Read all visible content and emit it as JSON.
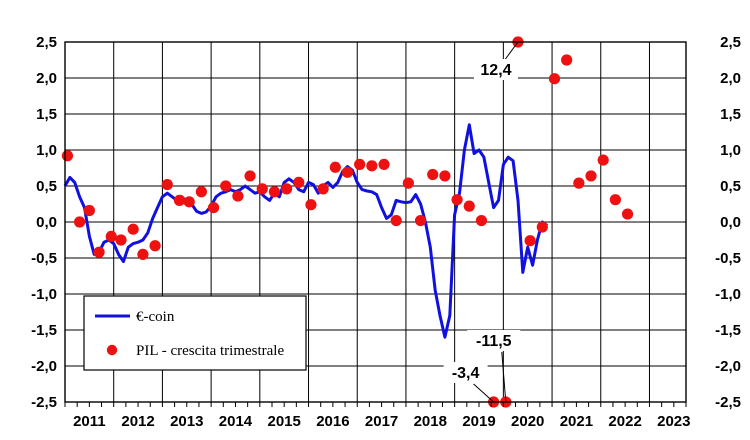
{
  "chart_data": {
    "type": "line",
    "title": "",
    "xlabel": "",
    "ylabel": "",
    "ylim": [
      -2.5,
      2.5
    ],
    "xlim": [
      2010.5,
      2023.25
    ],
    "y_ticks": [
      "2,5",
      "2,0",
      "1,5",
      "1,0",
      "0,5",
      "0,0",
      "-0,5",
      "-1,0",
      "-1,5",
      "-2,0",
      "-2,5"
    ],
    "y_tick_values": [
      2.5,
      2.0,
      1.5,
      1.0,
      0.5,
      0.0,
      -0.5,
      -1.0,
      -1.5,
      -2.0,
      -2.5
    ],
    "x_tick_labels": [
      "2011",
      "2012",
      "2013",
      "2014",
      "2015",
      "2016",
      "2017",
      "2018",
      "2019",
      "2020",
      "2021",
      "2022",
      "2023"
    ],
    "grid": true,
    "legend_position": "bottom-left",
    "colors": {
      "line": "#1010e0",
      "dots": "#ee1111",
      "grid": "#000000"
    },
    "series": [
      {
        "name": "€-coin",
        "kind": "line",
        "points": [
          [
            2010.5,
            0.5
          ],
          [
            2010.6,
            0.62
          ],
          [
            2010.7,
            0.55
          ],
          [
            2010.8,
            0.35
          ],
          [
            2010.9,
            0.2
          ],
          [
            2011.0,
            -0.2
          ],
          [
            2011.1,
            -0.45
          ],
          [
            2011.2,
            -0.42
          ],
          [
            2011.3,
            -0.28
          ],
          [
            2011.4,
            -0.25
          ],
          [
            2011.5,
            -0.3
          ],
          [
            2011.6,
            -0.45
          ],
          [
            2011.7,
            -0.55
          ],
          [
            2011.8,
            -0.35
          ],
          [
            2011.9,
            -0.3
          ],
          [
            2012.0,
            -0.28
          ],
          [
            2012.1,
            -0.25
          ],
          [
            2012.2,
            -0.15
          ],
          [
            2012.3,
            0.05
          ],
          [
            2012.4,
            0.2
          ],
          [
            2012.5,
            0.35
          ],
          [
            2012.6,
            0.4
          ],
          [
            2012.7,
            0.35
          ],
          [
            2012.8,
            0.3
          ],
          [
            2012.9,
            0.35
          ],
          [
            2013.0,
            0.28
          ],
          [
            2013.1,
            0.25
          ],
          [
            2013.2,
            0.15
          ],
          [
            2013.3,
            0.12
          ],
          [
            2013.4,
            0.14
          ],
          [
            2013.5,
            0.22
          ],
          [
            2013.6,
            0.35
          ],
          [
            2013.7,
            0.4
          ],
          [
            2013.8,
            0.42
          ],
          [
            2013.9,
            0.45
          ],
          [
            2014.0,
            0.42
          ],
          [
            2014.1,
            0.45
          ],
          [
            2014.2,
            0.5
          ],
          [
            2014.3,
            0.45
          ],
          [
            2014.4,
            0.4
          ],
          [
            2014.5,
            0.42
          ],
          [
            2014.6,
            0.35
          ],
          [
            2014.7,
            0.3
          ],
          [
            2014.8,
            0.4
          ],
          [
            2014.9,
            0.35
          ],
          [
            2015.0,
            0.55
          ],
          [
            2015.1,
            0.6
          ],
          [
            2015.2,
            0.55
          ],
          [
            2015.3,
            0.45
          ],
          [
            2015.4,
            0.42
          ],
          [
            2015.5,
            0.55
          ],
          [
            2015.6,
            0.52
          ],
          [
            2015.7,
            0.4
          ],
          [
            2015.8,
            0.5
          ],
          [
            2015.9,
            0.55
          ],
          [
            2016.0,
            0.48
          ],
          [
            2016.1,
            0.55
          ],
          [
            2016.2,
            0.7
          ],
          [
            2016.3,
            0.77
          ],
          [
            2016.4,
            0.72
          ],
          [
            2016.5,
            0.55
          ],
          [
            2016.6,
            0.45
          ],
          [
            2016.7,
            0.43
          ],
          [
            2016.8,
            0.42
          ],
          [
            2016.9,
            0.38
          ],
          [
            2017.0,
            0.2
          ],
          [
            2017.1,
            0.05
          ],
          [
            2017.2,
            0.1
          ],
          [
            2017.3,
            0.3
          ],
          [
            2017.4,
            0.28
          ],
          [
            2017.5,
            0.27
          ],
          [
            2017.6,
            0.28
          ],
          [
            2017.7,
            0.38
          ],
          [
            2017.8,
            0.25
          ],
          [
            2017.9,
            0.0
          ],
          [
            2018.0,
            -0.35
          ],
          [
            2018.1,
            -0.95
          ],
          [
            2018.2,
            -1.3
          ],
          [
            2018.3,
            -1.6
          ],
          [
            2018.4,
            -1.3
          ],
          [
            2018.5,
            0.1
          ],
          [
            2018.6,
            0.4
          ],
          [
            2018.7,
            1.0
          ],
          [
            2018.8,
            1.35
          ],
          [
            2018.9,
            0.95
          ],
          [
            2019.0,
            1.0
          ],
          [
            2019.1,
            0.9
          ],
          [
            2019.2,
            0.55
          ],
          [
            2019.3,
            0.2
          ],
          [
            2019.4,
            0.3
          ],
          [
            2019.5,
            0.8
          ],
          [
            2019.6,
            0.9
          ],
          [
            2019.7,
            0.85
          ],
          [
            2019.8,
            0.3
          ],
          [
            2019.9,
            -0.7
          ],
          [
            2020.0,
            -0.35
          ],
          [
            2020.1,
            -0.6
          ],
          [
            2020.2,
            -0.25
          ],
          [
            2020.3,
            0.0
          ],
          [
            2020.4,
            -0.05
          ]
        ]
      },
      {
        "name": "PIL - crescita trimestrale",
        "kind": "dots",
        "points": [
          [
            2010.55,
            0.92
          ],
          [
            2010.8,
            0.0
          ],
          [
            2011.0,
            0.16
          ],
          [
            2011.2,
            -0.42
          ],
          [
            2011.45,
            -0.2
          ],
          [
            2011.65,
            -0.25
          ],
          [
            2011.9,
            -0.1
          ],
          [
            2012.1,
            -0.45
          ],
          [
            2012.35,
            -0.33
          ],
          [
            2012.6,
            0.52
          ],
          [
            2012.85,
            0.3
          ],
          [
            2013.05,
            0.28
          ],
          [
            2013.3,
            0.42
          ],
          [
            2013.55,
            0.2
          ],
          [
            2013.8,
            0.5
          ],
          [
            2014.05,
            0.36
          ],
          [
            2014.3,
            0.64
          ],
          [
            2014.55,
            0.46
          ],
          [
            2014.8,
            0.42
          ],
          [
            2015.05,
            0.46
          ],
          [
            2015.3,
            0.55
          ],
          [
            2015.55,
            0.24
          ],
          [
            2015.8,
            0.46
          ],
          [
            2016.05,
            0.76
          ],
          [
            2016.3,
            0.69
          ],
          [
            2016.55,
            0.8
          ],
          [
            2016.8,
            0.78
          ],
          [
            2017.05,
            0.8
          ],
          [
            2017.3,
            0.02
          ],
          [
            2017.55,
            0.54
          ],
          [
            2017.8,
            0.02
          ],
          [
            2018.05,
            0.66
          ],
          [
            2018.3,
            0.64
          ],
          [
            2018.55,
            0.31
          ],
          [
            2018.8,
            0.22
          ],
          [
            2019.05,
            0.02
          ],
          [
            2019.3,
            -2.5
          ],
          [
            2019.55,
            -2.5
          ],
          [
            2019.8,
            2.5
          ],
          [
            2020.05,
            -0.26
          ],
          [
            2020.3,
            -0.07
          ],
          [
            2020.55,
            1.99
          ],
          [
            2020.8,
            2.25
          ],
          [
            2021.05,
            0.54
          ],
          [
            2021.3,
            0.64
          ],
          [
            2021.55,
            0.86
          ],
          [
            2021.8,
            0.31
          ],
          [
            2022.05,
            0.11
          ]
        ]
      }
    ],
    "annotations": [
      {
        "text": "12,4",
        "x": 2019.8,
        "y": 2.5
      },
      {
        "text": "-11,5",
        "x": 2019.55,
        "y": -2.5
      },
      {
        "text": "-3,4",
        "x": 2019.3,
        "y": -2.5
      }
    ],
    "legend": {
      "line_label": "€-coin",
      "dots_label": "PIL - crescita trimestrale"
    }
  }
}
